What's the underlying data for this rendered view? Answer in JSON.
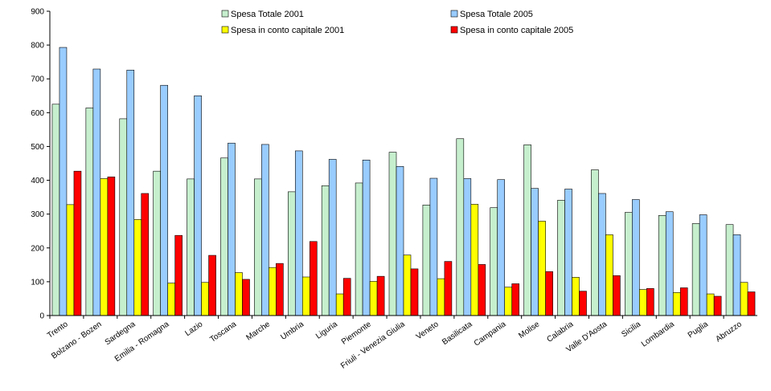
{
  "chart_data": {
    "type": "bar",
    "title": "",
    "xlabel": "",
    "ylabel": "",
    "ylim": [
      0,
      900
    ],
    "yticks": [
      0,
      100,
      200,
      300,
      400,
      500,
      600,
      700,
      800,
      900
    ],
    "grid": false,
    "legend_position": "top",
    "categories": [
      "Trento",
      "Bolzano - Bozen",
      "Sardegna",
      "Emilia - Romagna",
      "Lazio",
      "Toscana",
      "Marche",
      "Umbria",
      "Liguria",
      "Piemonte",
      "Friuli - Venezia Giulia",
      "Veneto",
      "Basilicata",
      "Campania",
      "Molise",
      "Calabria",
      "Valle D'Aosta",
      "Sicilia",
      "Lombardia",
      "Puglia",
      "Abruzzo"
    ],
    "series": [
      {
        "name": "Spesa Totale 2001",
        "color": "#c6efce",
        "values": [
          625,
          614,
          582,
          427,
          404,
          466,
          404,
          366,
          384,
          392,
          483,
          327,
          523,
          319,
          505,
          341,
          431,
          305,
          296,
          272,
          269
        ]
      },
      {
        "name": "Spesa Totale  2005",
        "color": "#99ccff",
        "values": [
          793,
          729,
          726,
          681,
          650,
          510,
          506,
          487,
          462,
          460,
          441,
          406,
          405,
          402,
          376,
          374,
          361,
          343,
          307,
          298,
          239
        ]
      },
      {
        "name": "Spesa in conto capitale 2001",
        "color": "#ffff00",
        "values": [
          328,
          405,
          284,
          96,
          98,
          127,
          142,
          114,
          64,
          101,
          179,
          109,
          329,
          84,
          279,
          113,
          239,
          77,
          68,
          64,
          98
        ]
      },
      {
        "name": "Spesa in conto capitale 2005",
        "color": "#ff0000",
        "values": [
          427,
          410,
          361,
          237,
          178,
          107,
          154,
          219,
          110,
          116,
          138,
          160,
          151,
          94,
          130,
          72,
          118,
          80,
          82,
          57,
          70
        ]
      }
    ]
  }
}
